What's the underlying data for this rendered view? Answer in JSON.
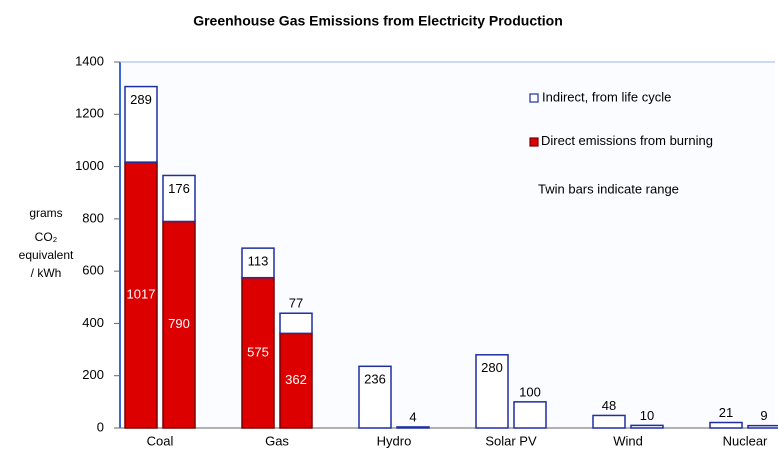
{
  "chart_data": {
    "type": "twin-stacked-bar",
    "title": "Greenhouse Gas Emissions from Electricity Production",
    "y_label_lines": [
      "grams",
      "CO₂",
      "equivalent",
      "/ kWh"
    ],
    "annotation": "Twin bars indicate range",
    "categories": [
      "Coal",
      "Gas",
      "Hydro",
      "Solar PV",
      "Wind",
      "Nuclear"
    ],
    "series": [
      {
        "name": "Direct emissions from burning",
        "color": "#dd0000",
        "border": "#7a0000",
        "values": [
          [
            1017,
            790
          ],
          [
            575,
            362
          ],
          [
            null,
            null
          ],
          [
            null,
            null
          ],
          [
            null,
            null
          ],
          [
            null,
            null
          ]
        ]
      },
      {
        "name": "Indirect, from life cycle",
        "color": "#ffffff",
        "border": "#1f2fa0",
        "values": [
          [
            289,
            176
          ],
          [
            113,
            77
          ],
          [
            236,
            4
          ],
          [
            280,
            100
          ],
          [
            48,
            10
          ],
          [
            21,
            9
          ]
        ]
      }
    ],
    "ylim": [
      0,
      1400
    ],
    "yticks": [
      0,
      200,
      400,
      600,
      800,
      1000,
      1200,
      1400
    ]
  }
}
